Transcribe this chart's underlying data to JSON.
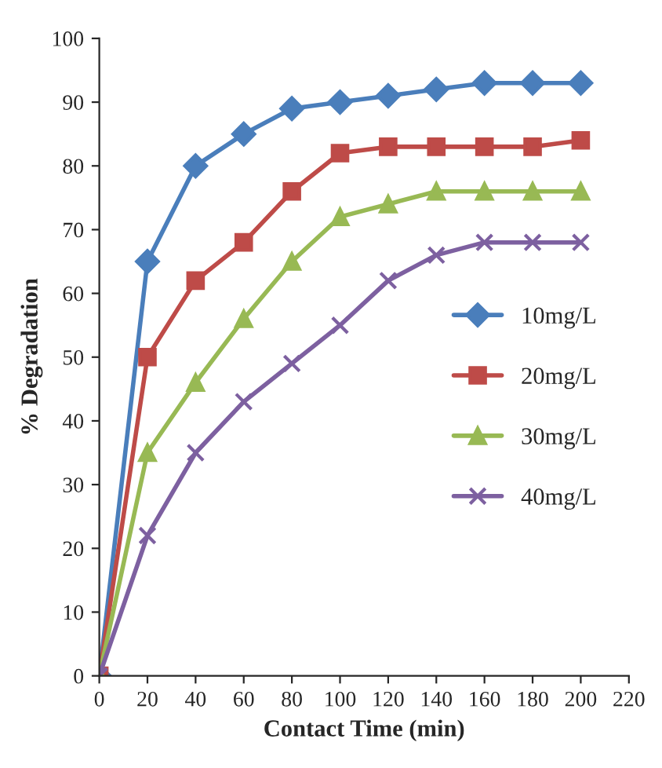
{
  "chart_data": {
    "type": "line",
    "xlabel": "Contact Time (min)",
    "ylabel": "% Degradation",
    "x": [
      0,
      20,
      40,
      60,
      80,
      100,
      120,
      140,
      160,
      180,
      200
    ],
    "series": [
      {
        "name": "10mg/L",
        "color": "#4a7ebb",
        "marker": "diamond",
        "values": [
          0,
          65,
          80,
          85,
          89,
          90,
          91,
          92,
          93,
          93,
          93
        ]
      },
      {
        "name": "20mg/L",
        "color": "#be4b48",
        "marker": "square",
        "values": [
          0,
          50,
          62,
          68,
          76,
          82,
          83,
          83,
          83,
          83,
          84
        ]
      },
      {
        "name": "30mg/L",
        "color": "#98b954",
        "marker": "triangle",
        "values": [
          0,
          35,
          46,
          56,
          65,
          72,
          74,
          76,
          76,
          76,
          76
        ]
      },
      {
        "name": "40mg/L",
        "color": "#7d60a0",
        "marker": "cross",
        "values": [
          0,
          22,
          35,
          43,
          49,
          55,
          62,
          66,
          68,
          68,
          68
        ]
      }
    ],
    "xlim": [
      0,
      220
    ],
    "xticks": [
      0,
      20,
      40,
      60,
      80,
      100,
      120,
      140,
      160,
      180,
      200,
      220
    ],
    "ylim": [
      0,
      100
    ],
    "yticks": [
      0,
      10,
      20,
      30,
      40,
      50,
      60,
      70,
      80,
      90,
      100
    ],
    "grid": false,
    "legend": "right",
    "line_style": "solid"
  }
}
